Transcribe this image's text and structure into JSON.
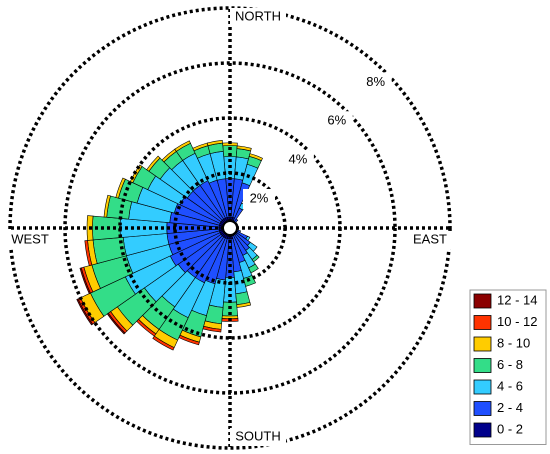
{
  "chart_data": {
    "type": "windrose",
    "direction_labels": [
      "NORTH",
      "EAST",
      "SOUTH",
      "WEST"
    ],
    "rlim": [
      0,
      8
    ],
    "rticks": [
      {
        "value": 2,
        "label": "2%"
      },
      {
        "value": 4,
        "label": "4%"
      },
      {
        "value": 6,
        "label": "6%"
      },
      {
        "value": 8,
        "label": "8%"
      }
    ],
    "series": [
      {
        "name": "0 - 2",
        "color": "#00008b",
        "values": [
          0.4,
          0.4,
          0.4,
          0.3,
          0.2,
          0.2,
          0.2,
          0.2,
          0.2,
          0.2,
          0.2,
          0.2,
          0.3,
          0.3,
          0.3,
          0.3,
          0.3,
          0.4,
          0.4,
          0.4,
          0.4,
          0.4,
          0.4,
          0.4,
          0.4,
          0.4,
          0.4,
          0.4,
          0.4,
          0.4,
          0.4,
          0.4,
          0.4,
          0.4,
          0.4,
          0.4
        ]
      },
      {
        "name": "2 - 4",
        "color": "#1f4fff",
        "values": [
          1.4,
          1.4,
          1.3,
          0.5,
          0.2,
          0.1,
          0.1,
          0.1,
          0.1,
          0.1,
          0.1,
          0.2,
          0.4,
          0.6,
          0.7,
          0.8,
          1.0,
          1.2,
          1.4,
          1.5,
          1.7,
          1.8,
          1.8,
          1.9,
          2.0,
          1.9,
          1.9,
          1.9,
          1.8,
          1.7,
          1.6,
          1.5,
          1.5,
          1.5,
          1.4,
          1.4
        ]
      },
      {
        "name": "4 - 6",
        "color": "#33ccff",
        "values": [
          0.8,
          0.8,
          0.7,
          0.2,
          0,
          0,
          0,
          0,
          0,
          0,
          0,
          0,
          0.1,
          0.3,
          0.4,
          0.5,
          0.6,
          0.8,
          0.9,
          1.0,
          1.2,
          1.4,
          1.3,
          1.5,
          1.8,
          1.6,
          1.6,
          1.7,
          1.5,
          1.4,
          1.3,
          1.2,
          1.1,
          1.1,
          1.0,
          1.0
        ]
      },
      {
        "name": "6 - 8",
        "color": "#33dd88",
        "values": [
          0.4,
          0.3,
          0.3,
          0,
          0,
          0,
          0,
          0,
          0,
          0,
          0,
          0,
          0,
          0,
          0.1,
          0.2,
          0.3,
          0.4,
          0.5,
          0.6,
          0.8,
          0.9,
          1.0,
          1.2,
          1.4,
          1.3,
          1.1,
          1.0,
          0.8,
          0.7,
          0.6,
          0.5,
          0.4,
          0.4,
          0.3,
          0.3
        ]
      },
      {
        "name": "8 - 10",
        "color": "#ffcc00",
        "values": [
          0.1,
          0.1,
          0.1,
          0,
          0,
          0,
          0,
          0,
          0,
          0,
          0,
          0,
          0,
          0,
          0,
          0,
          0,
          0.1,
          0.1,
          0.2,
          0.2,
          0.3,
          0.2,
          0.3,
          0.4,
          0.3,
          0.2,
          0.2,
          0.1,
          0.1,
          0.1,
          0.1,
          0.1,
          0.1,
          0.1,
          0.1
        ]
      },
      {
        "name": "10 - 12",
        "color": "#ff3300",
        "values": [
          0,
          0,
          0,
          0,
          0,
          0,
          0,
          0,
          0,
          0,
          0,
          0,
          0,
          0,
          0,
          0,
          0,
          0,
          0.1,
          0.1,
          0.1,
          0.1,
          0.1,
          0.1,
          0.1,
          0.1,
          0.1,
          0,
          0,
          0,
          0,
          0,
          0,
          0,
          0,
          0
        ]
      },
      {
        "name": "12 - 14",
        "color": "#8b0000",
        "values": [
          0,
          0,
          0,
          0,
          0,
          0,
          0,
          0,
          0,
          0,
          0,
          0,
          0,
          0,
          0,
          0,
          0,
          0,
          0,
          0,
          0,
          0,
          0,
          0.05,
          0.05,
          0.05,
          0,
          0,
          0,
          0,
          0,
          0,
          0,
          0,
          0,
          0
        ]
      }
    ]
  }
}
